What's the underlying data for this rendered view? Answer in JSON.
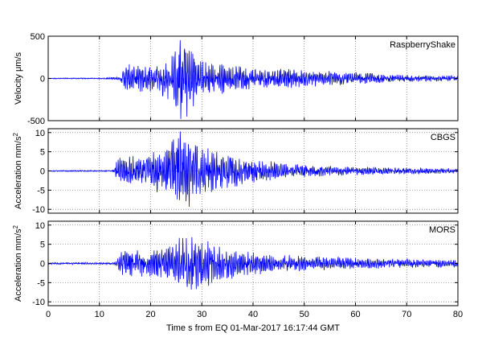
{
  "chart_data": [
    {
      "type": "line",
      "panel": "top",
      "label": "RaspberryShake",
      "ylabel": "Velocity μm/s",
      "xlim": [
        0,
        80
      ],
      "ylim": [
        -500,
        500
      ],
      "yticks": [
        -500,
        0,
        500
      ],
      "ytick_labels": [
        "-500",
        "0",
        "500"
      ],
      "grid": true,
      "color": "#0000ff",
      "trace_envelope": {
        "t": [
          0,
          10,
          12,
          14,
          15,
          18,
          21,
          24,
          26,
          28,
          30,
          33,
          36,
          40,
          45,
          50,
          55,
          60,
          63,
          66,
          70,
          75,
          80
        ],
        "amp": [
          6,
          6,
          12,
          18,
          150,
          160,
          140,
          260,
          480,
          380,
          200,
          180,
          140,
          120,
          110,
          95,
          85,
          70,
          60,
          45,
          40,
          35,
          30
        ]
      }
    },
    {
      "type": "line",
      "panel": "middle",
      "label": "CBGS",
      "ylabel": "Acceleration mm/s",
      "ylabel_superscript": "2",
      "xlim": [
        0,
        80
      ],
      "ylim": [
        -11,
        11
      ],
      "yticks": [
        -10,
        -5,
        0,
        5,
        10
      ],
      "ytick_labels": [
        "-10",
        "-5",
        "0",
        "5",
        "10"
      ],
      "grid": true,
      "color": "#0000ff",
      "trace_envelope": {
        "t": [
          0,
          12,
          13,
          13.5,
          16,
          20,
          23,
          26,
          28,
          30,
          33,
          36,
          40,
          45,
          50,
          55,
          60,
          65,
          70,
          75,
          80
        ],
        "amp": [
          0.15,
          0.15,
          0.4,
          3.5,
          3.5,
          4.5,
          6.5,
          10.5,
          8,
          6,
          5,
          4,
          3,
          2.2,
          1.6,
          1.2,
          1.0,
          0.9,
          0.8,
          0.7,
          0.6
        ]
      }
    },
    {
      "type": "line",
      "panel": "bottom",
      "label": "MORS",
      "ylabel": "Acceleration mm/s",
      "ylabel_superscript": "2",
      "xlabel": "Time s from EQ 01-Mar-2017 16:17:44 GMT",
      "xlim": [
        0,
        80
      ],
      "xticks": [
        0,
        10,
        20,
        30,
        40,
        50,
        60,
        70,
        80
      ],
      "xtick_labels": [
        "0",
        "10",
        "20",
        "30",
        "40",
        "50",
        "60",
        "70",
        "80"
      ],
      "ylim": [
        -11,
        11
      ],
      "yticks": [
        -10,
        -5,
        0,
        5,
        10
      ],
      "ytick_labels": [
        "-10",
        "-5",
        "0",
        "5",
        "10"
      ],
      "grid": true,
      "color": "#0000ff",
      "trace_envelope": {
        "t": [
          0,
          13,
          13.5,
          14,
          18,
          22,
          25,
          28,
          30,
          32,
          35,
          40,
          45,
          50,
          55,
          60,
          65,
          70,
          75,
          80
        ],
        "amp": [
          0.25,
          0.25,
          0.8,
          3.2,
          3.2,
          3.5,
          6,
          7.5,
          6,
          5,
          4,
          2.8,
          2.2,
          1.8,
          1.6,
          1.3,
          1.2,
          1.1,
          1.0,
          0.9
        ]
      }
    }
  ]
}
